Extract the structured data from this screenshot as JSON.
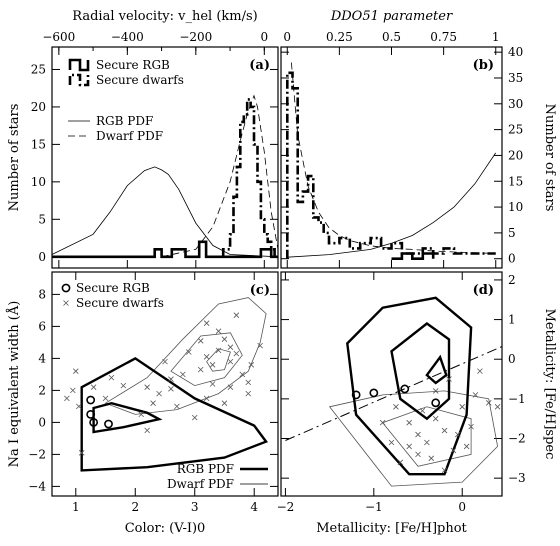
{
  "chart_data": [
    {
      "panel": "(a)",
      "type": "line",
      "top_axis_label": "Radial velocity: v_hel (km/s)",
      "ylabel": "Number of stars",
      "x_ticks": [
        -600,
        -400,
        -200,
        0
      ],
      "y_ticks": [
        0,
        5,
        10,
        15,
        20,
        25
      ],
      "xlim": [
        -620,
        40
      ],
      "ylim": [
        -1.5,
        28
      ],
      "series": [
        {
          "name": "Secure RGB",
          "style": "histogram-thick",
          "x": [
            -620,
            -320,
            -300,
            -290,
            -270,
            -240,
            -230,
            -190,
            -170,
            -20,
            -10,
            0,
            10,
            20,
            40
          ],
          "y": [
            0,
            1,
            0,
            0,
            1,
            1,
            0,
            2,
            0,
            0,
            1,
            1,
            1,
            0,
            0
          ]
        },
        {
          "name": "Secure dwarfs",
          "style": "histogram-dashdot",
          "x": [
            -120,
            -100,
            -90,
            -80,
            -70,
            -60,
            -50,
            -40,
            -30,
            -20,
            -10,
            0,
            10,
            20,
            30,
            40
          ],
          "y": [
            1,
            3,
            8,
            12,
            18,
            19,
            21,
            20,
            15,
            10,
            5,
            3,
            2,
            1,
            0,
            0
          ]
        },
        {
          "name": "RGB PDF",
          "style": "solid-thin",
          "x": [
            -620,
            -500,
            -450,
            -400,
            -350,
            -320,
            -300,
            -280,
            -250,
            -200,
            -150,
            -100,
            40
          ],
          "y": [
            0.3,
            3,
            6,
            9.5,
            11.5,
            12,
            11.6,
            11,
            9,
            4.5,
            1.5,
            0.3,
            0
          ]
        },
        {
          "name": "Dwarf PDF",
          "style": "dashed-thin",
          "x": [
            -300,
            -200,
            -150,
            -100,
            -70,
            -50,
            -30,
            -20,
            0,
            20,
            40
          ],
          "y": [
            0,
            1,
            4,
            10,
            15.5,
            19,
            21.5,
            20,
            14,
            6,
            1
          ]
        }
      ]
    },
    {
      "panel": "(b)",
      "type": "line",
      "top_axis_label": "DDO51 parameter",
      "ylabel": "Number of stars",
      "x_ticks": [
        0,
        0.25,
        0.5,
        0.75,
        1
      ],
      "x_tick_labels": [
        "0",
        "0.25",
        "0.5",
        "0.75",
        "1"
      ],
      "y_ticks": [
        0,
        5,
        10,
        15,
        20,
        25,
        30,
        35,
        40
      ],
      "xlim": [
        -0.03,
        1.03
      ],
      "ylim": [
        -1.8,
        41
      ],
      "series": [
        {
          "name": "Secure dwarfs",
          "style": "histogram-dashdot",
          "x": [
            0,
            0.025,
            0.05,
            0.075,
            0.1,
            0.125,
            0.15,
            0.175,
            0.2,
            0.25,
            0.3,
            0.35,
            0.4,
            0.45,
            0.5,
            0.55,
            0.6,
            0.65,
            0.7,
            0.75,
            0.8,
            0.85,
            0.9,
            0.95,
            1
          ],
          "y": [
            36,
            33,
            11,
            13,
            16,
            8,
            7,
            5,
            3,
            4,
            2,
            3,
            4,
            2,
            3,
            1,
            1,
            2,
            1,
            2,
            1,
            1,
            1,
            1,
            1
          ]
        },
        {
          "name": "Secure RGB",
          "style": "histogram-thick",
          "x": [
            0.5,
            0.55,
            0.6,
            0.65,
            0.7
          ],
          "y": [
            0,
            1,
            0,
            1,
            0
          ]
        },
        {
          "name": "Dwarf PDF",
          "style": "dashed-thin",
          "x": [
            0.02,
            0.05,
            0.1,
            0.15,
            0.2,
            0.25,
            0.3,
            0.4,
            0.5,
            0.6,
            0.7,
            0.8,
            1
          ],
          "y": [
            38,
            24,
            14,
            9,
            6,
            4.5,
            3.5,
            2.5,
            2,
            1.8,
            1.5,
            1.3,
            1
          ]
        },
        {
          "name": "RGB PDF",
          "style": "solid-thin",
          "x": [
            0,
            0.2,
            0.4,
            0.5,
            0.6,
            0.7,
            0.8,
            0.9,
            1
          ],
          "y": [
            0.3,
            0.8,
            1.8,
            3,
            4.5,
            7,
            10,
            14.5,
            20.5
          ]
        }
      ]
    },
    {
      "panel": "(c)",
      "type": "scatter",
      "xlabel": "Color: (V-I)0",
      "ylabel": "Na I equivalent width (Å)",
      "x_ticks": [
        1,
        2,
        3,
        4
      ],
      "y_ticks": [
        -4,
        -2,
        0,
        2,
        4,
        6,
        8
      ],
      "xlim": [
        0.6,
        4.4
      ],
      "ylim": [
        -4.6,
        9.4
      ],
      "legend": [
        "Secure RGB",
        "Secure dwarfs",
        "RGB PDF",
        "Dwarf PDF"
      ],
      "secure_rgb": [
        [
          1.25,
          1.4
        ],
        [
          1.25,
          0.5
        ],
        [
          1.3,
          0
        ],
        [
          1.55,
          -0.1
        ]
      ],
      "secure_dwarfs": [
        [
          3.6,
          3.8
        ],
        [
          3.4,
          4.5
        ],
        [
          3.5,
          5.2
        ],
        [
          3.2,
          6.2
        ],
        [
          3.8,
          3
        ],
        [
          3.9,
          2.5
        ],
        [
          3.3,
          2.4
        ],
        [
          3.6,
          2.2
        ],
        [
          3.1,
          3.3
        ],
        [
          2.8,
          3
        ],
        [
          2.6,
          2.1
        ],
        [
          2.4,
          1.8
        ],
        [
          2.2,
          2.2
        ],
        [
          1.8,
          2.3
        ],
        [
          1.6,
          2.8
        ],
        [
          1.3,
          2.2
        ],
        [
          1,
          3.2
        ],
        [
          0.95,
          2
        ],
        [
          0.85,
          1.5
        ],
        [
          1.05,
          1
        ],
        [
          2.1,
          0.5
        ],
        [
          2.3,
          1.2
        ],
        [
          2.7,
          1
        ],
        [
          3.2,
          1.5
        ],
        [
          3.5,
          1.2
        ],
        [
          3.9,
          1.8
        ],
        [
          4.1,
          4.8
        ],
        [
          3.7,
          6.7
        ],
        [
          3.4,
          5.7
        ],
        [
          2.9,
          4.4
        ],
        [
          2.6,
          2.7
        ],
        [
          3.7,
          4.3
        ],
        [
          3.3,
          3.6
        ],
        [
          3.95,
          3.6
        ],
        [
          2.5,
          3.8
        ],
        [
          3.1,
          5.1
        ],
        [
          1.5,
          1.5
        ],
        [
          1.1,
          -1.9
        ],
        [
          2.2,
          -0.5
        ],
        [
          3,
          0.3
        ],
        [
          3.6,
          4.7
        ],
        [
          3.2,
          4.1
        ]
      ]
    },
    {
      "panel": "(d)",
      "type": "scatter",
      "xlabel": "Metallicity: [Fe/H]phot",
      "ylabel": "Metallicity: [Fe/H]spec",
      "x_ticks": [
        -2,
        -1,
        0
      ],
      "y_ticks": [
        -3,
        -2,
        -1,
        0,
        1,
        2
      ],
      "xlim": [
        -2.05,
        0.45
      ],
      "ylim": [
        -3.45,
        2.2
      ],
      "secure_rgb": [
        [
          -1.2,
          -0.9
        ],
        [
          -1,
          -0.85
        ],
        [
          -0.65,
          -0.75
        ],
        [
          -0.3,
          -1.1
        ]
      ],
      "secure_dwarfs": [
        [
          -0.6,
          -1.6
        ],
        [
          -0.5,
          -1.9
        ],
        [
          -0.4,
          -2.1
        ],
        [
          -0.3,
          -1.5
        ],
        [
          -0.2,
          -1.8
        ],
        [
          -0.1,
          -2.3
        ],
        [
          0,
          -1.2
        ],
        [
          0.1,
          -1.7
        ],
        [
          0.2,
          -0.3
        ],
        [
          -0.3,
          -0.8
        ],
        [
          -0.8,
          -2.1
        ],
        [
          -0.9,
          -1.6
        ],
        [
          -0.7,
          -2.6
        ],
        [
          -0.5,
          -2.4
        ],
        [
          -0.2,
          -2.8
        ],
        [
          0.05,
          -2.2
        ],
        [
          0.3,
          -1.1
        ],
        [
          0.4,
          -1.2
        ],
        [
          -0.45,
          -1.3
        ],
        [
          -0.15,
          -0.5
        ],
        [
          -0.35,
          -2.5
        ],
        [
          -0.6,
          -2.2
        ],
        [
          0.15,
          -0.9
        ],
        [
          -0.05,
          -1.9
        ],
        [
          -0.75,
          -1.2
        ]
      ],
      "one_to_one_line": {
        "x": [
          -2,
          0.45
        ],
        "y": [
          -2.05,
          0.32
        ]
      }
    }
  ]
}
